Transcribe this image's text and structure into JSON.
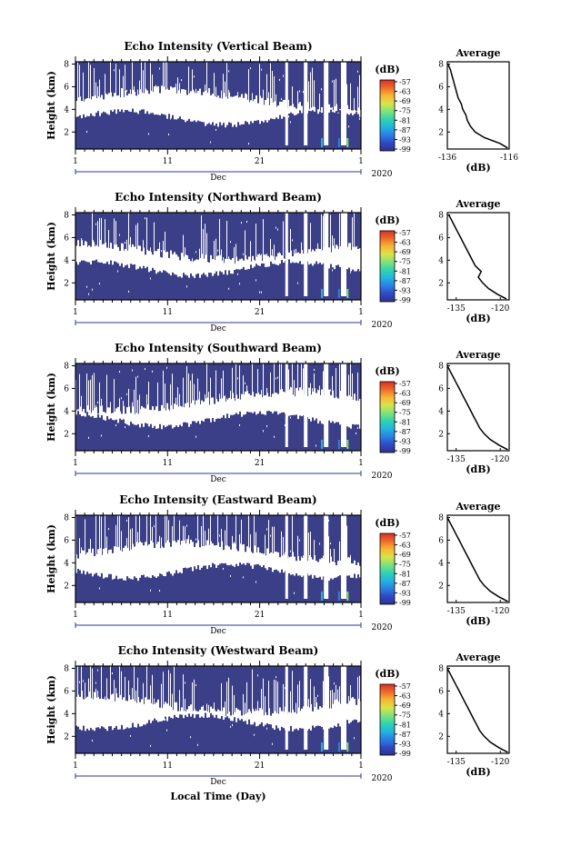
{
  "figure": {
    "xlabel": "Local Time (Day)",
    "month_label": "Dec",
    "year_label": "2020",
    "height_label": "Height (km)",
    "colorbar_unit": "(dB)",
    "average_title": "Average",
    "average_xlabel": "(dB)",
    "x_ticks": [
      "1",
      "11",
      "21",
      "1"
    ],
    "y_ticks": [
      "2",
      "4",
      "6",
      "8"
    ],
    "colorbar_ticks": [
      "-57",
      "-63",
      "-69",
      "-75",
      "-81",
      "-87",
      "-93",
      "-99"
    ],
    "colors": {
      "background_fill": "#3b3f88",
      "gap": "#ffffff",
      "colormap": [
        "#30318a",
        "#2f49c6",
        "#2a7fe4",
        "#22b4e0",
        "#2fd4b0",
        "#7fe27a",
        "#d9e34a",
        "#f7b733",
        "#ef6b2b",
        "#d93025"
      ]
    }
  },
  "chart_data": [
    {
      "type": "heatmap",
      "title": "Echo Intensity (Vertical Beam)",
      "xlabel": "",
      "ylabel": "Height (km)",
      "xlim": [
        "Dec 1 2020",
        "Jan 1 2021"
      ],
      "ylim_km": [
        0.5,
        8.2
      ],
      "colorbar_range_dB": [
        -99,
        -57
      ],
      "average": {
        "title": "Average",
        "xlabel": "(dB)",
        "xticks": [
          "-136",
          "-116"
        ],
        "xlim": [
          -136,
          -116
        ],
        "height_km": [
          0.6,
          1.0,
          1.5,
          2.0,
          2.5,
          3.0,
          3.5,
          4.0,
          4.5,
          5.0,
          5.5,
          6.0,
          6.5,
          7.0,
          7.5,
          8.0
        ],
        "intensity_dB": [
          -116.5,
          -119,
          -124,
          -127,
          -128.5,
          -129.5,
          -130,
          -131,
          -131.5,
          -132.5,
          -133,
          -133.5,
          -134,
          -134.5,
          -135,
          -135.8
        ]
      }
    },
    {
      "type": "heatmap",
      "title": "Echo Intensity (Northward Beam)",
      "xlabel": "",
      "ylabel": "Height (km)",
      "xlim": [
        "Dec 1 2020",
        "Jan 1 2021"
      ],
      "ylim_km": [
        0.5,
        8.2
      ],
      "colorbar_range_dB": [
        -99,
        -57
      ],
      "average": {
        "title": "Average",
        "xlabel": "(dB)",
        "xticks": [
          "-135",
          "-120"
        ],
        "xlim": [
          -138,
          -117
        ],
        "height_km": [
          0.6,
          1.0,
          1.5,
          2.0,
          2.5,
          3.0,
          3.5,
          4.0,
          4.5,
          5.0,
          5.5,
          6.0,
          6.5,
          7.0,
          7.5,
          8.0
        ],
        "intensity_dB": [
          -118,
          -121,
          -124,
          -126,
          -127.5,
          -126.5,
          -128.5,
          -129.5,
          -130.5,
          -131.5,
          -132.5,
          -133.5,
          -134.5,
          -135.5,
          -136.5,
          -137.5
        ]
      }
    },
    {
      "type": "heatmap",
      "title": "Echo Intensity (Southward Beam)",
      "xlabel": "",
      "ylabel": "Height (km)",
      "xlim": [
        "Dec 1 2020",
        "Jan 1 2021"
      ],
      "ylim_km": [
        0.5,
        8.2
      ],
      "colorbar_range_dB": [
        -99,
        -57
      ],
      "average": {
        "title": "Average",
        "xlabel": "(dB)",
        "xticks": [
          "-135",
          "-120"
        ],
        "xlim": [
          -138,
          -117
        ],
        "height_km": [
          0.6,
          1.0,
          1.5,
          2.0,
          2.5,
          3.0,
          3.5,
          4.0,
          4.5,
          5.0,
          5.5,
          6.0,
          6.5,
          7.0,
          7.5,
          8.0
        ],
        "intensity_dB": [
          -117.5,
          -120.5,
          -123.5,
          -125.5,
          -127,
          -128,
          -129,
          -130,
          -131,
          -132,
          -133,
          -134,
          -135,
          -136,
          -137,
          -138
        ]
      }
    },
    {
      "type": "heatmap",
      "title": "Echo Intensity (Eastward Beam)",
      "xlabel": "",
      "ylabel": "Height (km)",
      "xlim": [
        "Dec 1 2020",
        "Jan 1 2021"
      ],
      "ylim_km": [
        0.5,
        8.2
      ],
      "colorbar_range_dB": [
        -99,
        -57
      ],
      "average": {
        "title": "Average",
        "xlabel": "(dB)",
        "xticks": [
          "-135",
          "-120"
        ],
        "xlim": [
          -138,
          -117
        ],
        "height_km": [
          0.6,
          1.0,
          1.5,
          2.0,
          2.5,
          3.0,
          3.5,
          4.0,
          4.5,
          5.0,
          5.5,
          6.0,
          6.5,
          7.0,
          7.5,
          8.0
        ],
        "intensity_dB": [
          -117.5,
          -120.5,
          -123.5,
          -125.5,
          -127,
          -128,
          -129,
          -130,
          -131,
          -132,
          -133,
          -134,
          -135,
          -136,
          -137,
          -138
        ]
      }
    },
    {
      "type": "heatmap",
      "title": "Echo Intensity (Westward Beam)",
      "xlabel": "Local Time (Day)",
      "ylabel": "Height (km)",
      "xlim": [
        "Dec 1 2020",
        "Jan 1 2021"
      ],
      "ylim_km": [
        0.5,
        8.2
      ],
      "colorbar_range_dB": [
        -99,
        -57
      ],
      "average": {
        "title": "Average",
        "xlabel": "(dB)",
        "xticks": [
          "-135",
          "-120"
        ],
        "xlim": [
          -138,
          -117
        ],
        "height_km": [
          0.6,
          1.0,
          1.5,
          2.0,
          2.5,
          3.0,
          3.5,
          4.0,
          4.5,
          5.0,
          5.5,
          6.0,
          6.5,
          7.0,
          7.5,
          8.0
        ],
        "intensity_dB": [
          -117.5,
          -120.5,
          -123.5,
          -125.5,
          -127,
          -128,
          -129,
          -130,
          -131,
          -132,
          -133,
          -134,
          -135,
          -136,
          -137,
          -138
        ]
      }
    }
  ]
}
